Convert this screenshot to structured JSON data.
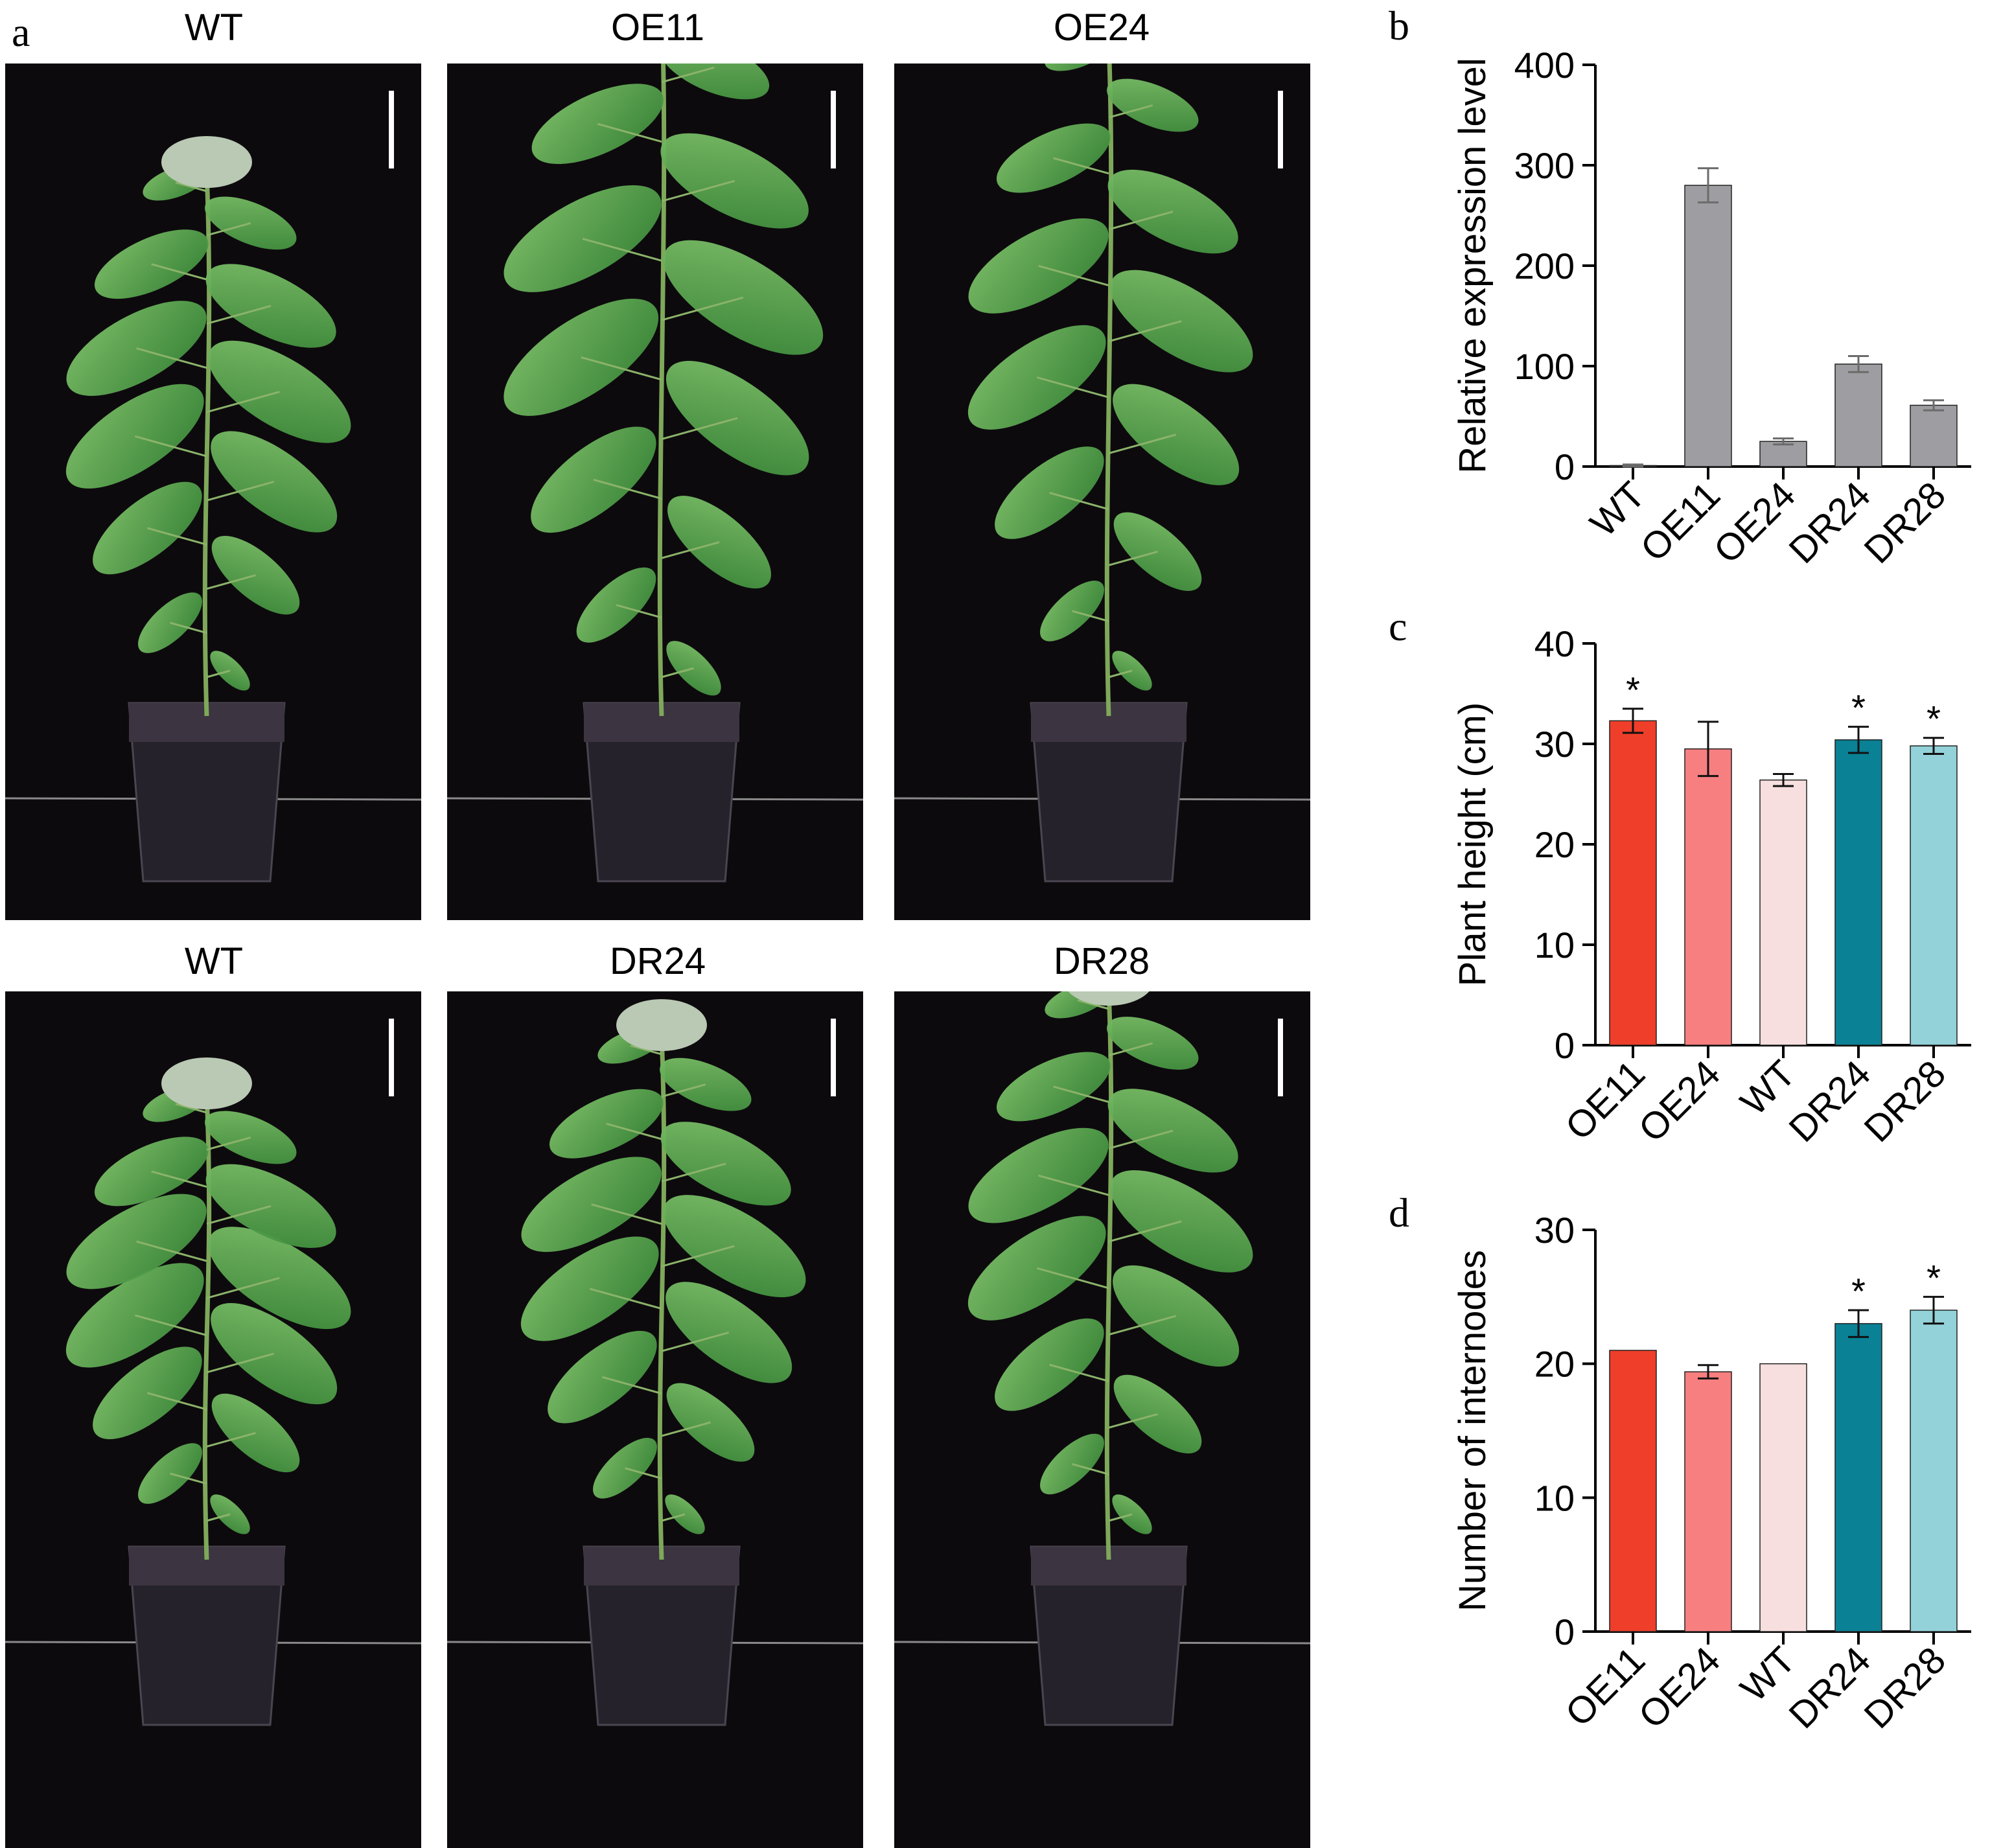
{
  "panels": {
    "a": {
      "letter": "a",
      "photos": [
        {
          "label": "WT"
        },
        {
          "label": "OE11"
        },
        {
          "label": "OE24"
        },
        {
          "label": "WT"
        },
        {
          "label": "DR24"
        },
        {
          "label": "DR28"
        }
      ]
    },
    "b": {
      "letter": "b"
    },
    "c": {
      "letter": "c"
    },
    "d": {
      "letter": "d"
    }
  },
  "colors": {
    "gray": "#9e9ea2",
    "OE11": "#ef3e2a",
    "OE24": "#f77f80",
    "WT": "#f6dfde",
    "DR24": "#0a8195",
    "DR28": "#93d2d8"
  },
  "chart_data": [
    {
      "id": "b",
      "type": "bar",
      "title": "",
      "xlabel": "",
      "ylabel": "Relative expression level",
      "categories": [
        "WT",
        "OE11",
        "OE24",
        "DR24",
        "DR28"
      ],
      "values": [
        1,
        280,
        25,
        102,
        61
      ],
      "errors": [
        1,
        17,
        3,
        8,
        5
      ],
      "ylim": [
        0,
        400
      ],
      "yticks": [
        0,
        100,
        200,
        300,
        400
      ],
      "significance": [
        "",
        "",
        "",
        "",
        ""
      ],
      "colors": [
        "gray",
        "gray",
        "gray",
        "gray",
        "gray"
      ]
    },
    {
      "id": "c",
      "type": "bar",
      "title": "",
      "xlabel": "",
      "ylabel": "Plant height (cm)",
      "categories": [
        "OE11",
        "OE24",
        "WT",
        "DR24",
        "DR28"
      ],
      "values": [
        32.3,
        29.5,
        26.4,
        30.4,
        29.8
      ],
      "errors": [
        1.2,
        2.7,
        0.6,
        1.3,
        0.8
      ],
      "ylim": [
        0,
        40
      ],
      "yticks": [
        0,
        10,
        20,
        30,
        40
      ],
      "significance": [
        "*",
        "",
        "",
        "*",
        "*"
      ],
      "colors": [
        "OE11",
        "OE24",
        "WT",
        "DR24",
        "DR28"
      ]
    },
    {
      "id": "d",
      "type": "bar",
      "title": "",
      "xlabel": "",
      "ylabel": "Number of internodes",
      "categories": [
        "OE11",
        "OE24",
        "WT",
        "DR24",
        "DR28"
      ],
      "values": [
        21,
        19.4,
        20,
        23,
        24
      ],
      "errors": [
        0,
        0.5,
        0,
        1,
        1
      ],
      "ylim": [
        0,
        30
      ],
      "yticks": [
        0,
        10,
        20,
        30
      ],
      "significance": [
        "",
        "",
        "",
        "*",
        "*"
      ],
      "colors": [
        "OE11",
        "OE24",
        "WT",
        "DR24",
        "DR28"
      ]
    }
  ]
}
